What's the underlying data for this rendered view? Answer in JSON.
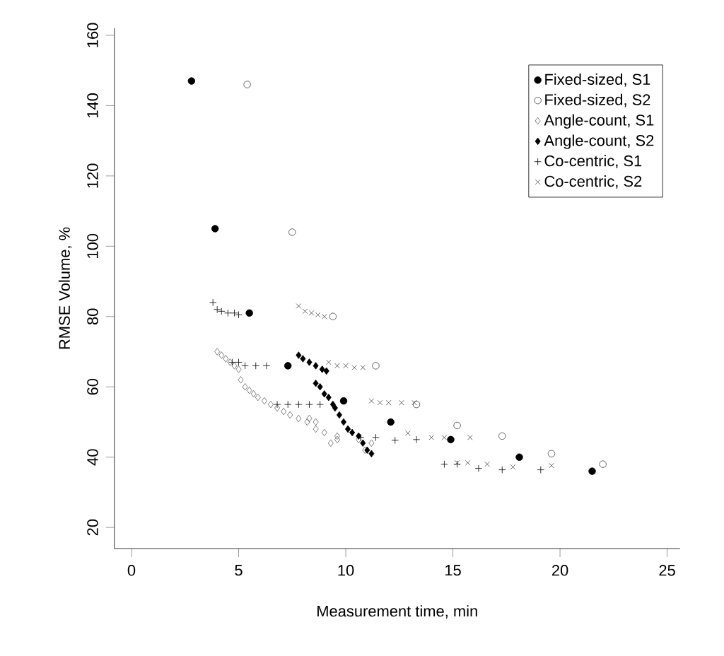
{
  "chart_data": {
    "type": "scatter",
    "xlabel": "Measurement time, min",
    "ylabel": "RMSE Volume, %",
    "xlim": [
      -0.8,
      25.6
    ],
    "ylim": [
      14,
      162
    ],
    "xticks": [
      0,
      5,
      10,
      15,
      20,
      25
    ],
    "yticks": [
      20,
      40,
      60,
      80,
      100,
      120,
      140,
      160
    ],
    "legend": "top right",
    "grid": false,
    "series": [
      {
        "name": "Fixed-sized, S1",
        "color": "#000000",
        "marker": "circle",
        "x": [
          2.8,
          3.9,
          5.5,
          7.3,
          9.9,
          12.1,
          14.9,
          18.1,
          21.5
        ],
        "values": [
          147,
          105,
          81,
          66,
          56,
          50,
          45,
          40,
          36
        ]
      },
      {
        "name": "Fixed-sized, S2",
        "color": "#404040",
        "marker": "circle",
        "x": [
          5.4,
          7.5,
          9.4,
          11.4,
          13.3,
          15.2,
          17.3,
          19.6,
          22.0
        ],
        "values": [
          146,
          104,
          80,
          66,
          55,
          49,
          46,
          41,
          38
        ]
      },
      {
        "name": "Angle-count, S1",
        "color": "#606060",
        "marker": "diamond",
        "x": [
          4.0,
          4.2,
          4.4,
          4.6,
          4.8,
          5.0,
          5.1,
          5.3,
          5.5,
          5.7,
          5.9,
          6.2,
          6.5,
          6.8,
          7.1,
          7.4,
          7.8,
          8.2,
          8.6,
          9.0,
          9.6,
          8.3,
          8.6,
          9.3,
          9.6,
          10.1,
          10.6,
          10.9,
          11.2
        ],
        "values": [
          70,
          69,
          68,
          67,
          66,
          65,
          62,
          60,
          59,
          58,
          57,
          56,
          55,
          54,
          53,
          52,
          51,
          50,
          48,
          47,
          46,
          51,
          50,
          44,
          45,
          48,
          45,
          42,
          44
        ]
      },
      {
        "name": "Angle-count, S2",
        "color": "#000000",
        "marker": "diamond",
        "x": [
          7.8,
          8.0,
          8.3,
          8.6,
          8.9,
          9.1,
          8.6,
          8.8,
          9.0,
          9.2,
          9.4,
          9.5,
          9.7,
          9.9,
          10.1,
          10.3,
          10.6,
          10.8,
          11.0,
          11.2
        ],
        "values": [
          69,
          68,
          67,
          66,
          65,
          64.5,
          61,
          60,
          58,
          57,
          55,
          54,
          52,
          50,
          48,
          47,
          46,
          44,
          42,
          41
        ]
      },
      {
        "name": "Co-centric, S1",
        "color": "#000000",
        "marker": "plus",
        "x": [
          3.8,
          4.0,
          4.2,
          4.5,
          4.8,
          5.0,
          4.7,
          5.0,
          5.3,
          5.8,
          6.3,
          6.8,
          7.3,
          7.8,
          8.3,
          8.8,
          10.7,
          11.4,
          12.3,
          13.3,
          14.6,
          15.2,
          16.2,
          17.3,
          19.1
        ],
        "values": [
          84,
          82,
          81.5,
          81,
          81,
          80.5,
          67,
          67,
          66,
          66,
          66,
          55,
          55,
          55,
          55,
          55,
          45.6,
          45.6,
          44.8,
          45,
          38,
          38,
          36.8,
          36.4,
          36.4
        ]
      },
      {
        "name": "Co-centric, S2",
        "color": "#404040",
        "marker": "cross",
        "x": [
          7.8,
          8.1,
          8.4,
          8.7,
          9.0,
          9.2,
          9.6,
          10.0,
          10.4,
          10.8,
          11.2,
          11.6,
          12.0,
          12.6,
          13.2,
          12.9,
          14.0,
          14.6,
          15.8,
          15.2,
          15.7,
          16.6,
          17.8,
          19.6
        ],
        "values": [
          83,
          81.5,
          81,
          80.5,
          80,
          67,
          66,
          66,
          65.5,
          65.5,
          56,
          55.5,
          55.5,
          55.5,
          55.5,
          46.8,
          45.6,
          45.6,
          45.6,
          38.4,
          38.4,
          38,
          37.2,
          37.6
        ]
      }
    ]
  }
}
